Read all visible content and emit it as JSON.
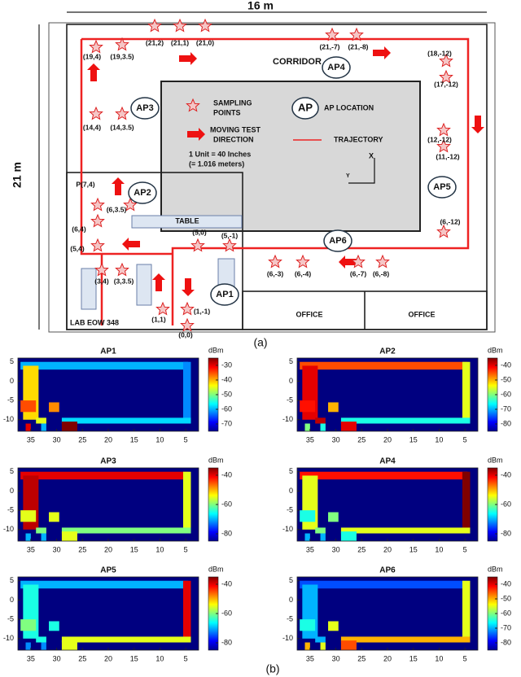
{
  "floor_plan": {
    "width_label": "16 m",
    "height_label": "21 m",
    "corridor": "CORRIDOR",
    "access_points": [
      "AP1",
      "AP2",
      "AP3",
      "AP4",
      "AP5",
      "AP6"
    ],
    "legend": {
      "sampling_points": [
        "SAMPLING",
        "POINTS"
      ],
      "ap_symbol": "AP",
      "ap_location": "AP LOCATION",
      "moving_direction": [
        "MOVING TEST",
        "DIRECTION"
      ],
      "trajectory": "TRAJECTORY",
      "unit": [
        "1 Unit = 40 Inches",
        "(= 1.016 meters)"
      ],
      "axis_x": "X",
      "axis_y": "Y"
    },
    "table": "TABLE",
    "offices": [
      "OFFICE",
      "OFFICE"
    ],
    "lab": "LAB EOW 348",
    "points": [
      "(19,4)",
      "(19,3.5)",
      "(21,2)",
      "(21,1)",
      "(21,0)",
      "(21,-7)",
      "(21,-8)",
      "(18,-12)",
      "(17,-12)",
      "(14,4)",
      "(14,3.5)",
      "(12,-12)",
      "(11,-12)",
      "(6,-12)",
      "P(7,4)",
      "(6,3.5)",
      "(6,4)",
      "(5,4)",
      "(5,0)",
      "(5,-1)",
      "(3,4)",
      "(3,3.5)",
      "(1,1)",
      "(1,-1)",
      "(0,0)",
      "(6,-3)",
      "(6,-4)",
      "(6,-7)",
      "(6,-8)"
    ],
    "caption": "(a)"
  },
  "chart_data": [
    {
      "type": "heatmap",
      "title": "AP1",
      "colorbar_label": "dBm",
      "colormap": "jet",
      "xlim": [
        37.5,
        2.5
      ],
      "ylim": [
        -13,
        6
      ],
      "xticks": [
        35,
        30,
        25,
        20,
        15,
        10,
        5
      ],
      "yticks": [
        5,
        0,
        -5,
        -10
      ],
      "clim": [
        -75,
        -25
      ],
      "cticks": [
        -30,
        -40,
        -50,
        -60,
        -70
      ],
      "cells": [
        [
          37,
          4.5,
          3,
          5,
          -60
        ],
        [
          5.5,
          4,
          -10.5,
          5,
          -62
        ],
        [
          29,
          4,
          -11,
          -9.5,
          -58
        ],
        [
          36.5,
          33.5,
          -10,
          4,
          -42
        ],
        [
          37,
          34,
          -8,
          -5,
          -35
        ],
        [
          31.5,
          29.5,
          -8,
          -5.5,
          -38
        ],
        [
          34,
          32,
          -11,
          -9.5,
          -45
        ],
        [
          36,
          35,
          -13,
          -11,
          -30
        ],
        [
          33,
          32,
          -13,
          -11,
          -60
        ],
        [
          29,
          26,
          -13,
          -10.5,
          -25
        ]
      ]
    },
    {
      "type": "heatmap",
      "title": "AP2",
      "colorbar_label": "dBm",
      "colormap": "jet",
      "xlim": [
        37.5,
        2.5
      ],
      "ylim": [
        -13,
        6
      ],
      "xticks": [
        35,
        30,
        25,
        20,
        15,
        10,
        5
      ],
      "yticks": [
        5,
        0,
        -5,
        -10
      ],
      "clim": [
        -85,
        -35
      ],
      "cticks": [
        -40,
        -50,
        -60,
        -70,
        -80
      ],
      "cells": [
        [
          37,
          4.5,
          3,
          5,
          -45
        ],
        [
          5.5,
          4,
          -10.5,
          5,
          -55
        ],
        [
          29,
          4,
          -11,
          -9.5,
          -65
        ],
        [
          36.5,
          33.5,
          -10,
          4,
          -40
        ],
        [
          37,
          34,
          -8,
          -5,
          -42
        ],
        [
          31.5,
          29.5,
          -8,
          -5.5,
          -50
        ],
        [
          34,
          32,
          -11,
          -9.5,
          -38
        ],
        [
          36,
          35,
          -13,
          -11,
          -60
        ],
        [
          33,
          32,
          -13,
          -11,
          -65
        ],
        [
          29,
          26,
          -13,
          -10.5,
          -40
        ]
      ]
    },
    {
      "type": "heatmap",
      "title": "AP3",
      "colorbar_label": "dBm",
      "colormap": "jet",
      "xlim": [
        37.5,
        2.5
      ],
      "ylim": [
        -13,
        6
      ],
      "xticks": [
        35,
        30,
        25,
        20,
        15,
        10,
        5
      ],
      "yticks": [
        5,
        0,
        -5,
        -10
      ],
      "clim": [
        -85,
        -35
      ],
      "cticks": [
        -40,
        -60,
        -80
      ],
      "cells": [
        [
          37,
          4.5,
          3,
          5,
          -40
        ],
        [
          5.5,
          4,
          -10.5,
          5,
          -55
        ],
        [
          29,
          4,
          -11,
          -9.5,
          -60
        ],
        [
          36.5,
          33.5,
          -10,
          4,
          -38
        ],
        [
          37,
          34,
          -8,
          -5,
          -55
        ],
        [
          31.5,
          29.5,
          -8,
          -5.5,
          -55
        ],
        [
          34,
          32,
          -11,
          -9.5,
          -60
        ],
        [
          36,
          35,
          -13,
          -11,
          -70
        ],
        [
          33,
          32,
          -13,
          -11,
          -70
        ],
        [
          29,
          26,
          -13,
          -10.5,
          -55
        ]
      ]
    },
    {
      "type": "heatmap",
      "title": "AP4",
      "colorbar_label": "dBm",
      "colormap": "jet",
      "xlim": [
        37.5,
        2.5
      ],
      "ylim": [
        -13,
        6
      ],
      "xticks": [
        35,
        30,
        25,
        20,
        15,
        10,
        5
      ],
      "yticks": [
        5,
        0,
        -5,
        -10
      ],
      "clim": [
        -85,
        -35
      ],
      "cticks": [
        -40,
        -60,
        -80
      ],
      "cells": [
        [
          37,
          4.5,
          3,
          5,
          -42
        ],
        [
          5.5,
          4,
          -10.5,
          5,
          -35
        ],
        [
          29,
          4,
          -11,
          -9.5,
          -55
        ],
        [
          36.5,
          33.5,
          -10,
          4,
          -55
        ],
        [
          37,
          34,
          -8,
          -5,
          -65
        ],
        [
          31.5,
          29.5,
          -8,
          -5.5,
          -60
        ],
        [
          34,
          32,
          -11,
          -9.5,
          -60
        ],
        [
          36,
          35,
          -13,
          -11,
          -70
        ],
        [
          33,
          32,
          -13,
          -11,
          -70
        ],
        [
          29,
          26,
          -13,
          -10.5,
          -65
        ]
      ]
    },
    {
      "type": "heatmap",
      "title": "AP5",
      "colorbar_label": "dBm",
      "colormap": "jet",
      "xlim": [
        37.5,
        2.5
      ],
      "ylim": [
        -13,
        6
      ],
      "xticks": [
        35,
        30,
        25,
        20,
        15,
        10,
        5
      ],
      "yticks": [
        5,
        0,
        -5,
        -10
      ],
      "clim": [
        -85,
        -35
      ],
      "cticks": [
        -40,
        -60,
        -80
      ],
      "cells": [
        [
          37,
          4.5,
          3,
          5,
          -70
        ],
        [
          5.5,
          4,
          -10.5,
          5,
          -40
        ],
        [
          29,
          4,
          -11,
          -9.5,
          -55
        ],
        [
          36.5,
          33.5,
          -10,
          4,
          -65
        ],
        [
          37,
          34,
          -8,
          -5,
          -60
        ],
        [
          31.5,
          29.5,
          -8,
          -5.5,
          -65
        ],
        [
          34,
          32,
          -11,
          -9.5,
          -65
        ],
        [
          36,
          35,
          -13,
          -11,
          -72
        ],
        [
          33,
          32,
          -13,
          -11,
          -72
        ],
        [
          29,
          26,
          -13,
          -10.5,
          -55
        ]
      ]
    },
    {
      "type": "heatmap",
      "title": "AP6",
      "colorbar_label": "dBm",
      "colormap": "jet",
      "xlim": [
        37.5,
        2.5
      ],
      "ylim": [
        -13,
        6
      ],
      "xticks": [
        35,
        30,
        25,
        20,
        15,
        10,
        5
      ],
      "yticks": [
        5,
        0,
        -5,
        -10
      ],
      "clim": [
        -85,
        -35
      ],
      "cticks": [
        -40,
        -50,
        -60,
        -70,
        -80
      ],
      "cells": [
        [
          37,
          4.5,
          3,
          5,
          -75
        ],
        [
          5.5,
          4,
          -10.5,
          5,
          -55
        ],
        [
          29,
          4,
          -11,
          -9.5,
          -50
        ],
        [
          36.5,
          33.5,
          -10,
          4,
          -70
        ],
        [
          37,
          34,
          -8,
          -5,
          -65
        ],
        [
          31.5,
          29.5,
          -8,
          -5.5,
          -55
        ],
        [
          34,
          32,
          -11,
          -9.5,
          -70
        ],
        [
          36,
          35,
          -13,
          -11,
          -50
        ],
        [
          33,
          32,
          -13,
          -11,
          -55
        ],
        [
          29,
          26,
          -13,
          -10.5,
          -45
        ]
      ]
    }
  ],
  "caption_b": "(b)"
}
